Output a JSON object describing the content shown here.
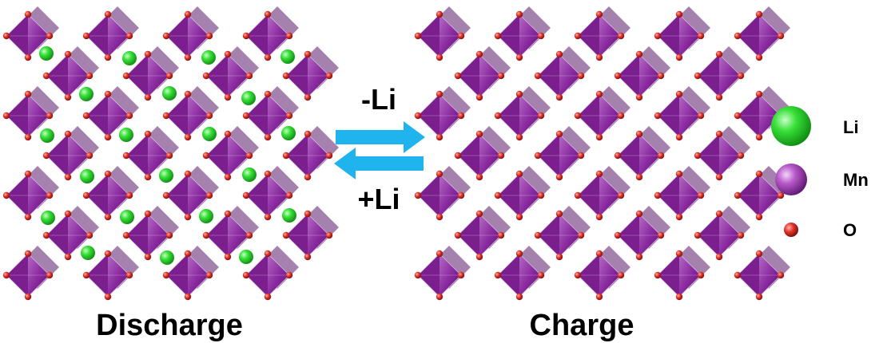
{
  "labels": {
    "discharge": "Discharge",
    "charge": "Charge",
    "delithiation": "-Li",
    "lithiation": "+Li"
  },
  "legend": [
    {
      "label": "Li",
      "color": "#2fd22f",
      "shape": "large-sphere"
    },
    {
      "label": "Mn",
      "color": "#b04fc4",
      "shape": "medium-sphere"
    },
    {
      "label": "O",
      "color": "#d3261c",
      "shape": "small-sphere"
    }
  ],
  "colors": {
    "octahedron": "#7b1f8e",
    "octahedron_light": "#a85ab8",
    "oxygen": "#c8191a",
    "lithium": "#2fd22f",
    "arrow": "#1fb4ee"
  },
  "arrows": [
    {
      "direction": "right",
      "meaning": "charge"
    },
    {
      "direction": "left",
      "meaning": "discharge"
    }
  ]
}
